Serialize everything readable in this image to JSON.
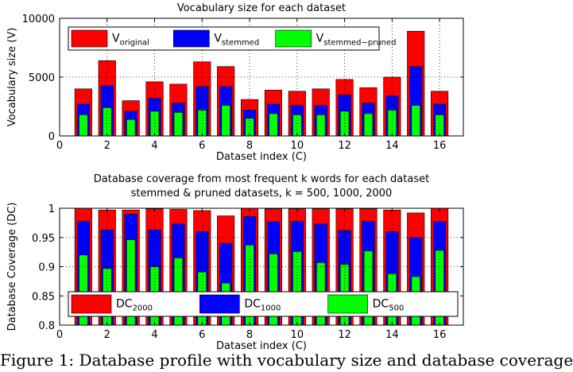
{
  "chart_data": [
    {
      "type": "bar",
      "title": "Vocabulary size for each dataset",
      "xlabel": "Dataset index (C)",
      "ylabel": "Vocabulary size (V)",
      "xlim": [
        0,
        17
      ],
      "ylim": [
        0,
        10000
      ],
      "xticks": [
        0,
        2,
        4,
        6,
        8,
        10,
        12,
        14,
        16
      ],
      "yticks": [
        0,
        5000,
        10000
      ],
      "grid": true,
      "legend_position": "top",
      "x": [
        1,
        2,
        3,
        4,
        5,
        6,
        7,
        8,
        9,
        10,
        11,
        12,
        13,
        14,
        15,
        16
      ],
      "series": [
        {
          "name": "V",
          "subscript": "original",
          "color": "#ff0000",
          "values": [
            4000,
            6400,
            3000,
            4600,
            4400,
            6300,
            5900,
            3100,
            3900,
            3800,
            4000,
            4800,
            4100,
            5000,
            8900,
            3800
          ]
        },
        {
          "name": "V",
          "subscript": "stemmed",
          "color": "#0000ff",
          "values": [
            2700,
            4300,
            2100,
            3200,
            2800,
            4200,
            4200,
            2200,
            2700,
            2600,
            2600,
            3500,
            2800,
            3400,
            5900,
            2700
          ]
        },
        {
          "name": "V",
          "subscript": "stemmed−pruned",
          "color": "#00ff00",
          "values": [
            1800,
            2400,
            1400,
            2100,
            2000,
            2200,
            2600,
            1500,
            1900,
            1800,
            1800,
            2100,
            1900,
            2200,
            2600,
            1800
          ]
        }
      ]
    },
    {
      "type": "bar",
      "title": "Database coverage from most frequent k words for each dataset",
      "subtitle": "stemmed & pruned datasets, k = 500, 1000, 2000",
      "xlabel": "Dataset index (C)",
      "ylabel": "Database Coverage (DC)",
      "xlim": [
        0,
        17
      ],
      "ylim": [
        0.8,
        1.0
      ],
      "xticks": [
        0,
        2,
        4,
        6,
        8,
        10,
        12,
        14,
        16
      ],
      "yticks": [
        0.8,
        0.85,
        0.9,
        0.95,
        1
      ],
      "ytick_labels": [
        "0.8",
        "0.85",
        "0.9",
        "0.95",
        "1"
      ],
      "grid": true,
      "legend_position": "bottom",
      "x": [
        1,
        2,
        3,
        4,
        5,
        6,
        7,
        8,
        9,
        10,
        11,
        12,
        13,
        14,
        15,
        16
      ],
      "series": [
        {
          "name": "DC",
          "subscript": "2000",
          "color": "#ff0000",
          "values": [
            1.0,
            0.997,
            0.997,
            0.999,
            0.998,
            0.996,
            0.987,
            1.0,
            0.999,
            0.999,
            0.999,
            0.999,
            0.999,
            0.997,
            0.992,
            1.0
          ]
        },
        {
          "name": "DC",
          "subscript": "1000",
          "color": "#0000ff",
          "values": [
            0.978,
            0.963,
            0.99,
            0.963,
            0.973,
            0.96,
            0.94,
            0.986,
            0.977,
            0.978,
            0.973,
            0.962,
            0.978,
            0.96,
            0.95,
            0.977
          ]
        },
        {
          "name": "DC",
          "subscript": "500",
          "color": "#00ff00",
          "values": [
            0.92,
            0.897,
            0.946,
            0.9,
            0.915,
            0.891,
            0.872,
            0.937,
            0.922,
            0.926,
            0.907,
            0.904,
            0.927,
            0.888,
            0.883,
            0.928
          ]
        }
      ]
    }
  ],
  "caption": "Figure 1: Database profile with vocabulary size and database coverage"
}
